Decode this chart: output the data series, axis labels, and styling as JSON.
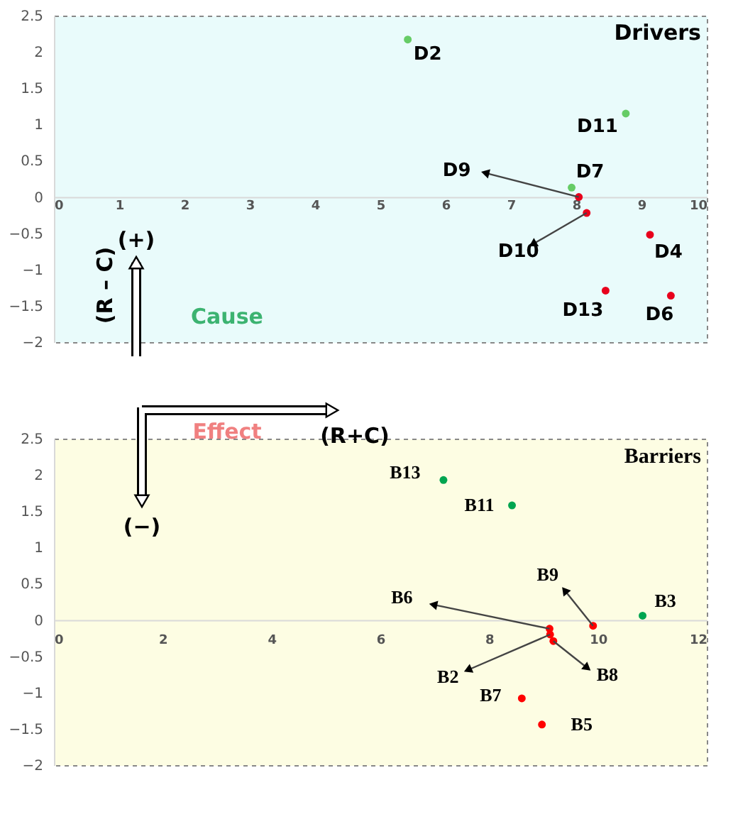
{
  "chart_data": [
    {
      "type": "scatter",
      "title": "Drivers",
      "xlim": [
        0,
        10
      ],
      "ylim": [
        -2,
        2.5
      ],
      "xticks": [
        0,
        1,
        2,
        3,
        4,
        5,
        6,
        7,
        8,
        9,
        10
      ],
      "yticks": [
        -2,
        -1.5,
        -1,
        -0.5,
        0,
        0.5,
        1,
        1.5,
        2,
        2.5
      ],
      "grid": false,
      "marker": "circle",
      "series": [
        {
          "color": "#66cc66",
          "x": [
            5.42,
            8.76,
            7.93
          ],
          "values": [
            2.17,
            1.15,
            0.13
          ]
        },
        {
          "color": "#e8001c",
          "x": [
            8.04,
            8.16,
            9.13,
            8.45,
            9.45
          ],
          "values": [
            0.0,
            -0.22,
            -0.52,
            -1.29,
            -1.36
          ]
        }
      ],
      "annotations": [
        {
          "text": "D2",
          "x": 5.42,
          "y": 2.17
        },
        {
          "text": "D11",
          "x": 8.76,
          "y": 1.15
        },
        {
          "text": "D7",
          "x": 7.93,
          "y": 0.13
        },
        {
          "text": "D9",
          "x": 8.04,
          "y": 0.0
        },
        {
          "text": "D10",
          "x": 8.16,
          "y": -0.22
        },
        {
          "text": "D4",
          "x": 9.13,
          "y": -0.52
        },
        {
          "text": "D13",
          "x": 8.45,
          "y": -1.29
        },
        {
          "text": "D6",
          "x": 9.45,
          "y": -1.36
        },
        "(+)",
        "(R – C)",
        "Cause"
      ]
    },
    {
      "type": "scatter",
      "title": "Barriers",
      "xlim": [
        0,
        12
      ],
      "ylim": [
        -2,
        2.5
      ],
      "xticks": [
        0,
        2,
        4,
        6,
        8,
        10,
        12
      ],
      "yticks": [
        -2,
        -1.5,
        -1,
        -0.5,
        0,
        0.5,
        1,
        1.5,
        2,
        2.5
      ],
      "grid": false,
      "marker": "circle",
      "series": [
        {
          "color": "#00a550",
          "x": [
            7.16,
            8.42,
            10.82
          ],
          "values": [
            1.93,
            1.58,
            0.06
          ]
        },
        {
          "color": "#ff0000",
          "x": [
            9.91,
            9.11,
            9.12,
            9.18,
            8.6,
            8.97
          ],
          "values": [
            -0.08,
            -0.12,
            -0.2,
            -0.29,
            -1.08,
            -1.44
          ]
        }
      ],
      "annotations": [
        {
          "text": "B13",
          "x": 7.16,
          "y": 1.93
        },
        {
          "text": "B11",
          "x": 8.42,
          "y": 1.58
        },
        {
          "text": "B3",
          "x": 10.82,
          "y": 0.06
        },
        {
          "text": "B9",
          "x": 9.91,
          "y": -0.08
        },
        {
          "text": "B6",
          "x": 9.11,
          "y": -0.12
        },
        {
          "text": "B2",
          "x": 9.12,
          "y": -0.2
        },
        {
          "text": "B8",
          "x": 9.18,
          "y": -0.29
        },
        {
          "text": "B7",
          "x": 8.6,
          "y": -1.08
        },
        {
          "text": "B5",
          "x": 8.97,
          "y": -1.44
        },
        "Effect",
        "(R+C)",
        "(−)"
      ]
    }
  ]
}
